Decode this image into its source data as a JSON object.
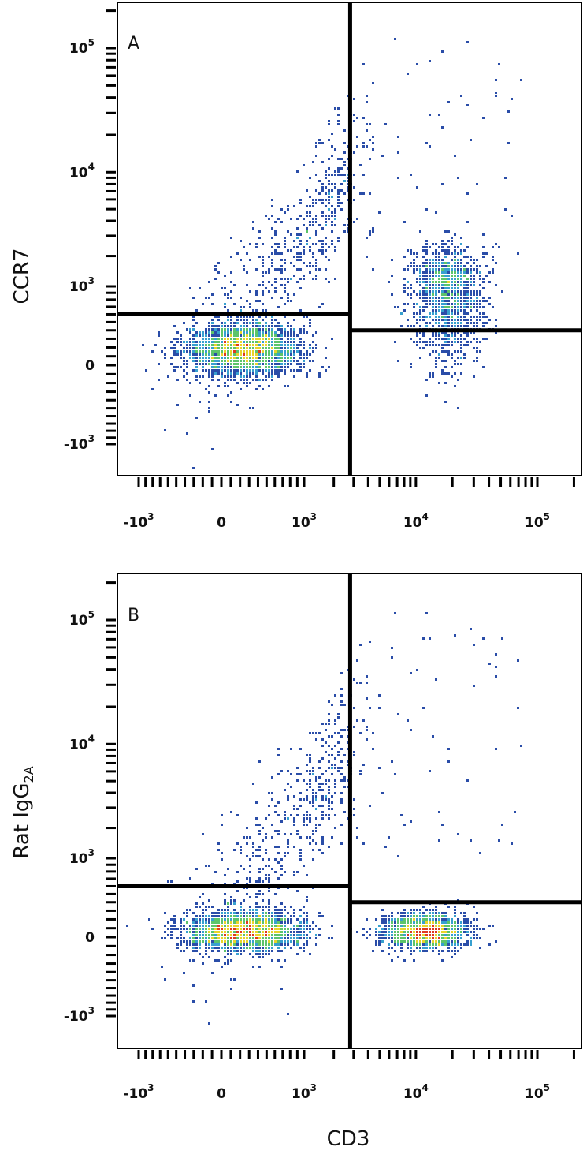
{
  "colors": {
    "density_low": "#2a4da8",
    "density_mid_low": "#37a0cf",
    "density_mid": "#5cc46a",
    "density_mid_high": "#e8d42a",
    "density_high": "#e03a1e",
    "gate_line": "#000000",
    "frame": "#000000"
  },
  "chart_data": [
    {
      "type": "scatter",
      "panel_label": "A",
      "xlabel": "",
      "ylabel": "CCR7",
      "x_scale": "biexponential",
      "y_scale": "biexponential",
      "xlim": [
        -1500,
        250000
      ],
      "ylim": [
        -1800,
        250000
      ],
      "x_ticks": [
        {
          "base": "-10",
          "exp": "3",
          "value": -1000
        },
        {
          "base": "0",
          "exp": "",
          "value": 0
        },
        {
          "base": "10",
          "exp": "3",
          "value": 1000
        },
        {
          "base": "10",
          "exp": "4",
          "value": 10000
        },
        {
          "base": "10",
          "exp": "5",
          "value": 100000
        }
      ],
      "y_ticks": [
        {
          "base": "10",
          "exp": "5",
          "value": 100000
        },
        {
          "base": "10",
          "exp": "4",
          "value": 10000
        },
        {
          "base": "10",
          "exp": "3",
          "value": 1000
        },
        {
          "base": "0",
          "exp": "",
          "value": 0
        },
        {
          "base": "-10",
          "exp": "3",
          "value": -1000
        }
      ],
      "gates": {
        "x_threshold": 2800,
        "y_threshold_left": 600,
        "y_threshold_right": 400
      },
      "populations": [
        {
          "name": "CD3- CCR7- cluster",
          "x_center": 250,
          "y_center": 180,
          "x_spread": 500,
          "y_spread": 220,
          "relative_density": 1.0
        },
        {
          "name": "CD3- diagonal streak",
          "x_center": 1200,
          "y_center": 5000,
          "x_spread": 900,
          "y_spread": 6000,
          "relative_density": 0.25
        },
        {
          "name": "CD3+ CCR7+ cluster",
          "x_center": 18000,
          "y_center": 900,
          "x_spread": 12000,
          "y_spread": 900,
          "relative_density": 0.55
        }
      ],
      "grid": false
    },
    {
      "type": "scatter",
      "panel_label": "B",
      "xlabel": "CD3",
      "ylabel": "Rat IgG",
      "ylabel_subscript": "2A",
      "x_scale": "biexponential",
      "y_scale": "biexponential",
      "xlim": [
        -1500,
        250000
      ],
      "ylim": [
        -1800,
        250000
      ],
      "x_ticks": [
        {
          "base": "-10",
          "exp": "3",
          "value": -1000
        },
        {
          "base": "0",
          "exp": "",
          "value": 0
        },
        {
          "base": "10",
          "exp": "3",
          "value": 1000
        },
        {
          "base": "10",
          "exp": "4",
          "value": 10000
        },
        {
          "base": "10",
          "exp": "5",
          "value": 100000
        }
      ],
      "y_ticks": [
        {
          "base": "10",
          "exp": "5",
          "value": 100000
        },
        {
          "base": "10",
          "exp": "4",
          "value": 10000
        },
        {
          "base": "10",
          "exp": "3",
          "value": 1000
        },
        {
          "base": "0",
          "exp": "",
          "value": 0
        },
        {
          "base": "-10",
          "exp": "3",
          "value": -1000
        }
      ],
      "gates": {
        "x_threshold": 2800,
        "y_threshold_left": 600,
        "y_threshold_right": 400
      },
      "populations": [
        {
          "name": "CD3- negative cluster",
          "x_center": 250,
          "y_center": 60,
          "x_spread": 500,
          "y_spread": 160,
          "relative_density": 1.0
        },
        {
          "name": "CD3- diagonal streak",
          "x_center": 1200,
          "y_center": 3000,
          "x_spread": 900,
          "y_spread": 5000,
          "relative_density": 0.22
        },
        {
          "name": "CD3+ negative cluster",
          "x_center": 12000,
          "y_center": 60,
          "x_spread": 9000,
          "y_spread": 140,
          "relative_density": 0.7
        }
      ],
      "grid": false
    }
  ]
}
